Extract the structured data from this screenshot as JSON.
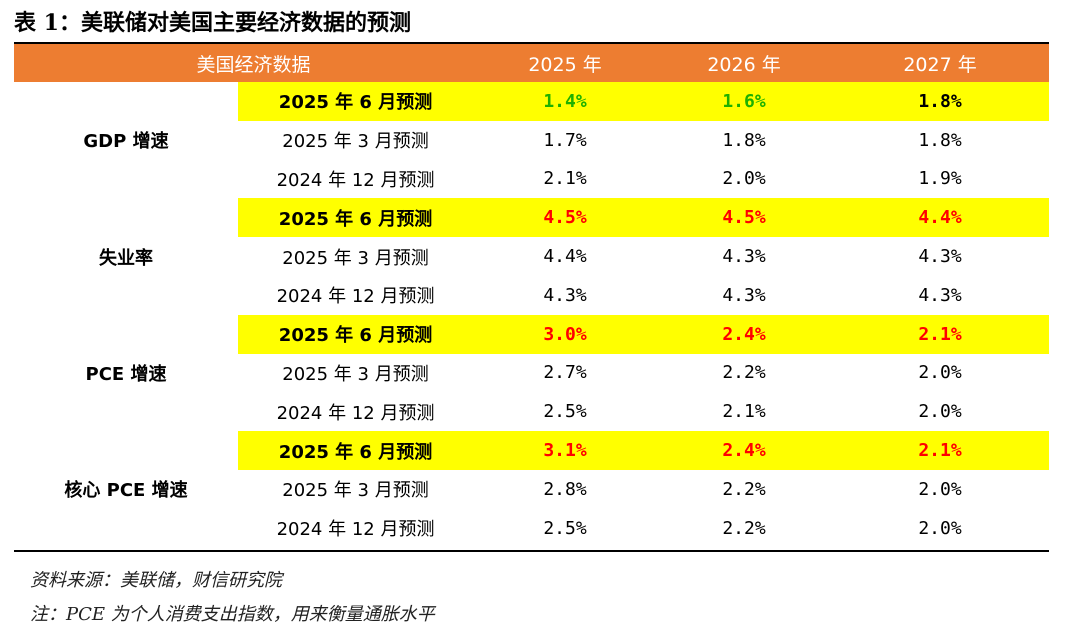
{
  "title": "表 1：美联储对美国主要经济数据的预测",
  "header": {
    "category": "美国经济数据",
    "years": [
      "2025 年",
      "2026 年",
      "2027 年"
    ]
  },
  "colors": {
    "header_bg": "#ed7d31",
    "highlight_bg": "#ffff00",
    "up_green": "#1db100",
    "up_red": "#ff0000"
  },
  "groups": [
    {
      "name": "GDP 增速",
      "rows": [
        {
          "period": "2025 年 6 月预测",
          "values": [
            "1.4%",
            "1.6%",
            "1.8%"
          ],
          "colors": [
            "#1db100",
            "#1db100",
            "#000000"
          ],
          "highlight": true
        },
        {
          "period": "2025 年 3 月预测",
          "values": [
            "1.7%",
            "1.8%",
            "1.8%"
          ],
          "colors": [
            "#000000",
            "#000000",
            "#000000"
          ],
          "highlight": false
        },
        {
          "period": "2024 年 12 月预测",
          "values": [
            "2.1%",
            "2.0%",
            "1.9%"
          ],
          "colors": [
            "#000000",
            "#000000",
            "#000000"
          ],
          "highlight": false
        }
      ]
    },
    {
      "name": "失业率",
      "rows": [
        {
          "period": "2025 年 6 月预测",
          "values": [
            "4.5%",
            "4.5%",
            "4.4%"
          ],
          "colors": [
            "#ff0000",
            "#ff0000",
            "#ff0000"
          ],
          "highlight": true
        },
        {
          "period": "2025 年 3 月预测",
          "values": [
            "4.4%",
            "4.3%",
            "4.3%"
          ],
          "colors": [
            "#000000",
            "#000000",
            "#000000"
          ],
          "highlight": false
        },
        {
          "period": "2024 年 12 月预测",
          "values": [
            "4.3%",
            "4.3%",
            "4.3%"
          ],
          "colors": [
            "#000000",
            "#000000",
            "#000000"
          ],
          "highlight": false
        }
      ]
    },
    {
      "name": "PCE 增速",
      "rows": [
        {
          "period": "2025 年 6 月预测",
          "values": [
            "3.0%",
            "2.4%",
            "2.1%"
          ],
          "colors": [
            "#ff0000",
            "#ff0000",
            "#ff0000"
          ],
          "highlight": true
        },
        {
          "period": "2025 年 3 月预测",
          "values": [
            "2.7%",
            "2.2%",
            "2.0%"
          ],
          "colors": [
            "#000000",
            "#000000",
            "#000000"
          ],
          "highlight": false
        },
        {
          "period": "2024 年 12 月预测",
          "values": [
            "2.5%",
            "2.1%",
            "2.0%"
          ],
          "colors": [
            "#000000",
            "#000000",
            "#000000"
          ],
          "highlight": false
        }
      ]
    },
    {
      "name": "核心 PCE 增速",
      "rows": [
        {
          "period": "2025 年 6 月预测",
          "values": [
            "3.1%",
            "2.4%",
            "2.1%"
          ],
          "colors": [
            "#ff0000",
            "#ff0000",
            "#ff0000"
          ],
          "highlight": true
        },
        {
          "period": "2025 年 3 月预测",
          "values": [
            "2.8%",
            "2.2%",
            "2.0%"
          ],
          "colors": [
            "#000000",
            "#000000",
            "#000000"
          ],
          "highlight": false
        },
        {
          "period": "2024 年 12 月预测",
          "values": [
            "2.5%",
            "2.2%",
            "2.0%"
          ],
          "colors": [
            "#000000",
            "#000000",
            "#000000"
          ],
          "highlight": false
        }
      ]
    }
  ],
  "source": "资料来源：美联储，财信研究院",
  "footnote": "注：PCE 为个人消费支出指数，用来衡量通胀水平"
}
